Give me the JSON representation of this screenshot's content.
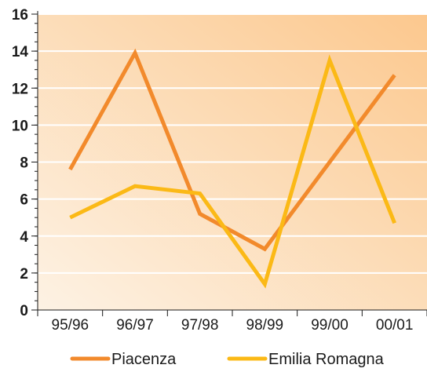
{
  "chart_data": {
    "type": "line",
    "categories": [
      "95/96",
      "96/97",
      "97/98",
      "98/99",
      "99/00",
      "00/01"
    ],
    "series": [
      {
        "name": "Piacenza",
        "color": "#f28a2c",
        "values": [
          7.6,
          13.9,
          5.2,
          3.3,
          8.0,
          12.7
        ]
      },
      {
        "name": "Emilia Romagna",
        "color": "#fbb916",
        "values": [
          5.0,
          6.7,
          6.3,
          1.4,
          13.5,
          4.7
        ]
      }
    ],
    "ylim": [
      0,
      16
    ],
    "yticks": [
      "0",
      "2",
      "4",
      "6",
      "8",
      "10",
      "12",
      "14",
      "16"
    ],
    "grid": true,
    "legend_position": "bottom",
    "background_gradient": [
      "#fdf2e4",
      "#fcc88e"
    ]
  }
}
